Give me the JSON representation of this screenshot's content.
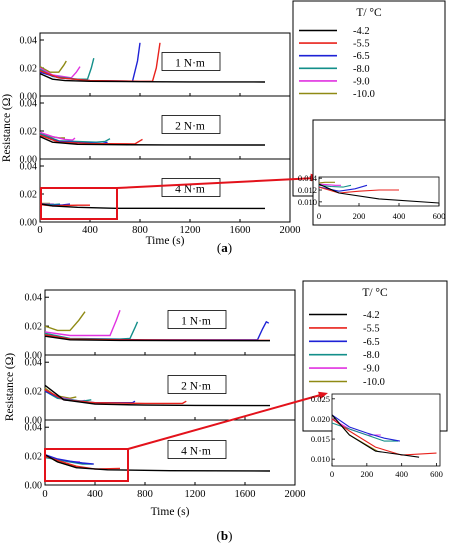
{
  "panels": [
    {
      "id": "a",
      "caption": {
        "open": "(",
        "letter": "a",
        "close": ")"
      },
      "ylabel": "Resistance (Ω)",
      "xlabel": "Time (s)",
      "xlim": [
        0,
        2000
      ],
      "xticks": [
        0,
        400,
        800,
        1200,
        1600,
        2000
      ],
      "subplots": [
        {
          "label": "1 N·m",
          "ylim": [
            0,
            0.045
          ],
          "yticks": [
            "0.00",
            "0.02",
            "0.04"
          ],
          "series": {
            "-4.2": [
              [
                0,
                0.016
              ],
              [
                100,
                0.012
              ],
              [
                200,
                0.011
              ],
              [
                400,
                0.0105
              ],
              [
                800,
                0.0102
              ],
              [
                1200,
                0.0101
              ],
              [
                1800,
                0.01
              ]
            ],
            "-5.5": [
              [
                0,
                0.018
              ],
              [
                150,
                0.013
              ],
              [
                400,
                0.011
              ],
              [
                800,
                0.0105
              ],
              [
                900,
                0.0105
              ],
              [
                930,
                0.02
              ],
              [
                960,
                0.038
              ]
            ],
            "-6.5": [
              [
                0,
                0.017
              ],
              [
                150,
                0.013
              ],
              [
                400,
                0.011
              ],
              [
                740,
                0.0105
              ],
              [
                780,
                0.025
              ],
              [
                800,
                0.038
              ]
            ],
            "-8.0": [
              [
                0,
                0.019
              ],
              [
                100,
                0.014
              ],
              [
                300,
                0.012
              ],
              [
                380,
                0.012
              ],
              [
                410,
                0.02
              ],
              [
                430,
                0.027
              ]
            ],
            "-9.0": [
              [
                0,
                0.02
              ],
              [
                100,
                0.015
              ],
              [
                250,
                0.013
              ],
              [
                290,
                0.017
              ],
              [
                320,
                0.021
              ]
            ],
            "-10.0": [
              [
                0,
                0.021
              ],
              [
                80,
                0.017
              ],
              [
                150,
                0.017
              ],
              [
                190,
                0.022
              ],
              [
                210,
                0.025
              ]
            ]
          }
        },
        {
          "label": "2 N·m",
          "ylim": [
            0,
            0.045
          ],
          "yticks": [
            "0.00",
            "0.02",
            "0.04"
          ],
          "series": {
            "-4.2": [
              [
                0,
                0.016
              ],
              [
                100,
                0.012
              ],
              [
                300,
                0.0105
              ],
              [
                600,
                0.0102
              ],
              [
                1000,
                0.0101
              ],
              [
                1800,
                0.01
              ]
            ],
            "-5.5": [
              [
                0,
                0.017
              ],
              [
                150,
                0.012
              ],
              [
                400,
                0.011
              ],
              [
                760,
                0.0108
              ],
              [
                800,
                0.013
              ],
              [
                820,
                0.014
              ]
            ],
            "-6.5": [
              [
                0,
                0.017
              ],
              [
                150,
                0.0125
              ],
              [
                350,
                0.0115
              ],
              [
                500,
                0.011
              ],
              [
                540,
                0.012
              ]
            ],
            "-8.0": [
              [
                0,
                0.018
              ],
              [
                150,
                0.013
              ],
              [
                450,
                0.012
              ],
              [
                520,
                0.0125
              ],
              [
                560,
                0.0145
              ]
            ],
            "-9.0": [
              [
                0,
                0.019
              ],
              [
                100,
                0.016
              ],
              [
                200,
                0.014
              ],
              [
                260,
                0.0135
              ],
              [
                280,
                0.015
              ]
            ],
            "-10.0": [
              [
                0,
                0.019
              ],
              [
                80,
                0.016
              ],
              [
                160,
                0.015
              ],
              [
                200,
                0.015
              ]
            ]
          }
        },
        {
          "label": "4 N·m",
          "ylim": [
            0,
            0.045
          ],
          "yticks": [
            "0.00",
            "0.02",
            "0.04"
          ],
          "series": {
            "-4.2": [
              [
                0,
                0.013
              ],
              [
                100,
                0.0115
              ],
              [
                300,
                0.0105
              ],
              [
                600,
                0.0098
              ],
              [
                1000,
                0.0098
              ],
              [
                1800,
                0.0097
              ]
            ],
            "-5.5": [
              [
                0,
                0.0125
              ],
              [
                100,
                0.0115
              ],
              [
                200,
                0.0118
              ],
              [
                300,
                0.012
              ],
              [
                400,
                0.012
              ]
            ],
            "-6.5": [
              [
                0,
                0.0125
              ],
              [
                100,
                0.0118
              ],
              [
                180,
                0.0122
              ],
              [
                240,
                0.0128
              ]
            ],
            "-8.0": [
              [
                0,
                0.0128
              ],
              [
                60,
                0.0126
              ],
              [
                120,
                0.0125
              ],
              [
                160,
                0.0128
              ]
            ],
            "-9.0": [
              [
                0,
                0.013
              ],
              [
                40,
                0.0129
              ],
              [
                80,
                0.0128
              ],
              [
                110,
                0.0128
              ]
            ],
            "-10.0": [
              [
                0,
                0.0132
              ],
              [
                30,
                0.0133
              ],
              [
                60,
                0.0133
              ],
              [
                80,
                0.0133
              ]
            ]
          }
        }
      ],
      "inset": {
        "xlim": [
          0,
          600
        ],
        "ylim": [
          0.0093,
          0.0142
        ],
        "xticks": [
          0,
          200,
          400,
          600
        ],
        "yticks": [
          0.01,
          0.012,
          0.014
        ],
        "ytick_labels": [
          "0.010",
          "0.012",
          "0.014"
        ]
      }
    },
    {
      "id": "b",
      "caption": {
        "open": "(",
        "letter": "b",
        "close": ")"
      },
      "ylabel": "Resistance (Ω)",
      "xlabel": "Time (s)",
      "xlim": [
        0,
        2000
      ],
      "xticks": [
        0,
        400,
        800,
        1200,
        1600,
        2000
      ],
      "subplots": [
        {
          "label": "1 N·m",
          "ylim": [
            0,
            0.045
          ],
          "yticks": [
            "0.00",
            "0.02",
            "0.04"
          ],
          "series": {
            "-4.2": [
              [
                0,
                0.013
              ],
              [
                200,
                0.0105
              ],
              [
                600,
                0.0101
              ],
              [
                1000,
                0.01
              ],
              [
                1800,
                0.0099
              ]
            ],
            "-5.5": [
              [
                0,
                0.014
              ],
              [
                200,
                0.011
              ],
              [
                600,
                0.0105
              ],
              [
                1000,
                0.0103
              ],
              [
                1800,
                0.0102
              ]
            ],
            "-6.5": [
              [
                0,
                0.014
              ],
              [
                200,
                0.011
              ],
              [
                800,
                0.0105
              ],
              [
                1700,
                0.0105
              ],
              [
                1740,
                0.018
              ],
              [
                1770,
                0.023
              ],
              [
                1790,
                0.022
              ]
            ],
            "-8.0": [
              [
                0,
                0.015
              ],
              [
                200,
                0.0115
              ],
              [
                600,
                0.011
              ],
              [
                680,
                0.0115
              ],
              [
                720,
                0.019
              ],
              [
                740,
                0.023
              ]
            ],
            "-9.0": [
              [
                0,
                0.016
              ],
              [
                200,
                0.0135
              ],
              [
                520,
                0.0135
              ],
              [
                570,
                0.024
              ],
              [
                600,
                0.031
              ]
            ],
            "-10.0": [
              [
                0,
                0.02
              ],
              [
                100,
                0.017
              ],
              [
                200,
                0.017
              ],
              [
                270,
                0.024
              ],
              [
                320,
                0.03
              ]
            ]
          }
        },
        {
          "label": "2 N·m",
          "ylim": [
            0,
            0.045
          ],
          "yticks": [
            "0.00",
            "0.02",
            "0.04"
          ],
          "series": {
            "-4.2": [
              [
                0,
                0.024
              ],
              [
                150,
                0.014
              ],
              [
                400,
                0.011
              ],
              [
                800,
                0.0103
              ],
              [
                1200,
                0.0101
              ],
              [
                1800,
                0.01
              ]
            ],
            "-5.5": [
              [
                0,
                0.021
              ],
              [
                150,
                0.014
              ],
              [
                400,
                0.012
              ],
              [
                800,
                0.0115
              ],
              [
                1100,
                0.0115
              ],
              [
                1130,
                0.013
              ]
            ],
            "-6.5": [
              [
                0,
                0.02
              ],
              [
                150,
                0.014
              ],
              [
                400,
                0.012
              ],
              [
                700,
                0.012
              ],
              [
                720,
                0.013
              ]
            ],
            "-8.0": [
              [
                0,
                0.02
              ],
              [
                100,
                0.015
              ],
              [
                300,
                0.013
              ],
              [
                370,
                0.014
              ]
            ],
            "-9.0": [
              [
                0,
                0.021
              ],
              [
                100,
                0.016
              ],
              [
                280,
                0.013
              ],
              [
                320,
                0.0135
              ]
            ],
            "-10.0": [
              [
                0,
                0.022
              ],
              [
                80,
                0.017
              ],
              [
                200,
                0.015
              ],
              [
                250,
                0.016
              ]
            ]
          }
        },
        {
          "label": "4 N·m",
          "ylim": [
            0,
            0.045
          ],
          "yticks": [
            "0.00",
            "0.02",
            "0.04"
          ],
          "series": {
            "-4.2": [
              [
                0,
                0.021
              ],
              [
                100,
                0.016
              ],
              [
                250,
                0.012
              ],
              [
                500,
                0.0105
              ],
              [
                1000,
                0.0099
              ],
              [
                1800,
                0.0097
              ]
            ],
            "-5.5": [
              [
                0,
                0.02
              ],
              [
                100,
                0.017
              ],
              [
                250,
                0.013
              ],
              [
                400,
                0.011
              ],
              [
                600,
                0.0115
              ]
            ],
            "-6.5": [
              [
                0,
                0.021
              ],
              [
                100,
                0.018
              ],
              [
                200,
                0.0165
              ],
              [
                300,
                0.0152
              ],
              [
                390,
                0.0145
              ]
            ],
            "-8.0": [
              [
                0,
                0.019
              ],
              [
                100,
                0.0175
              ],
              [
                200,
                0.016
              ],
              [
                300,
                0.0145
              ],
              [
                380,
                0.0145
              ]
            ],
            "-9.0": [
              [
                0,
                0.02
              ],
              [
                100,
                0.0175
              ],
              [
                200,
                0.016
              ],
              [
                280,
                0.016
              ]
            ],
            "-10.0": [
              [
                0,
                0.021
              ],
              [
                100,
                0.016
              ],
              [
                200,
                0.0135
              ],
              [
                260,
                0.012
              ]
            ]
          }
        }
      ],
      "inset": {
        "xlim": [
          0,
          620
        ],
        "ylim": [
          0.0083,
          0.0262
        ],
        "xticks": [
          0,
          200,
          400,
          600
        ],
        "yticks": [
          0.01,
          0.015,
          0.02,
          0.025
        ],
        "ytick_labels": [
          "0.010",
          "0.015",
          "0.020",
          "0.025"
        ]
      }
    }
  ],
  "legend": {
    "title": "T/ °C",
    "entries": [
      "-4.2",
      "-5.5",
      "-6.5",
      "-8.0",
      "-9.0",
      "-10.0"
    ]
  },
  "colors": {
    "-4.2": "#000000",
    "-5.5": "#e8221c",
    "-6.5": "#1e22d6",
    "-8.0": "#138f8a",
    "-9.0": "#e132e1",
    "-10.0": "#8f8a14",
    "highlight": "#e3121b"
  },
  "chart_data": [
    {
      "type": "line",
      "panel": "a",
      "xlabel": "Time (s)",
      "ylabel": "Resistance (Ω)",
      "xlim": [
        0,
        2000
      ],
      "ylim": [
        0,
        0.045
      ],
      "legend_title": "T/ °C",
      "series": [
        "-4.2",
        "-5.5",
        "-6.5",
        "-8.0",
        "-9.0",
        "-10.0"
      ],
      "subplots": [
        "1 N·m",
        "2 N·m",
        "4 N·m"
      ],
      "inset": {
        "of": "4 N·m",
        "xlim": [
          0,
          600
        ],
        "ylim": [
          0.0093,
          0.0142
        ]
      }
    },
    {
      "type": "line",
      "panel": "b",
      "xlabel": "Time (s)",
      "ylabel": "Resistance (Ω)",
      "xlim": [
        0,
        2000
      ],
      "ylim": [
        0,
        0.045
      ],
      "legend_title": "T/ °C",
      "series": [
        "-4.2",
        "-5.5",
        "-6.5",
        "-8.0",
        "-9.0",
        "-10.0"
      ],
      "subplots": [
        "1 N·m",
        "2 N·m",
        "4 N·m"
      ],
      "inset": {
        "of": "4 N·m",
        "xlim": [
          0,
          620
        ],
        "ylim": [
          0.0083,
          0.0262
        ]
      }
    }
  ]
}
